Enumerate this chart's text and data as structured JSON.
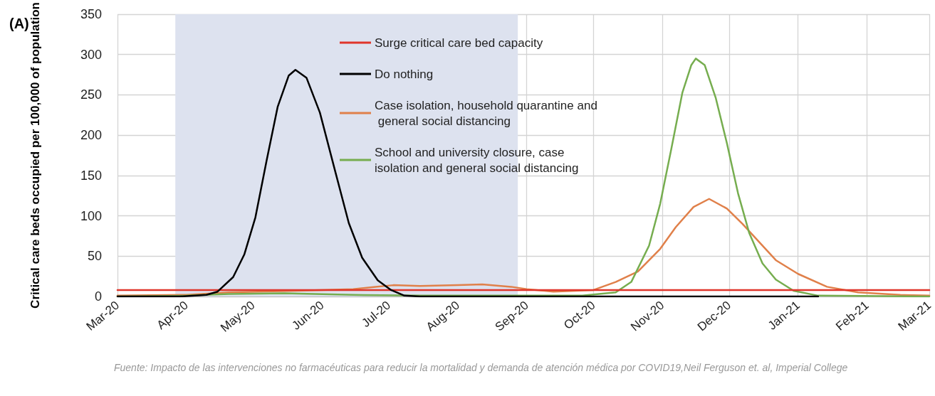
{
  "chart_data": {
    "type": "line",
    "title": "(A)",
    "ylabel": "Critical care beds occupied per 100,000 of population",
    "xlim": [
      "2020-03-01",
      "2021-03-01"
    ],
    "xticks": [
      {
        "value": "2020-03-01",
        "label": "Mar-20"
      },
      {
        "value": "2020-04-01",
        "label": "Apr-20"
      },
      {
        "value": "2020-05-01",
        "label": "May-20"
      },
      {
        "value": "2020-06-01",
        "label": "Jun-20"
      },
      {
        "value": "2020-07-01",
        "label": "Jul-20"
      },
      {
        "value": "2020-08-01",
        "label": "Aug-20"
      },
      {
        "value": "2020-09-01",
        "label": "Sep-20"
      },
      {
        "value": "2020-10-01",
        "label": "Oct-20"
      },
      {
        "value": "2020-11-01",
        "label": "Nov-20"
      },
      {
        "value": "2020-12-01",
        "label": "Dec-20"
      },
      {
        "value": "2021-01-01",
        "label": "Jan-21"
      },
      {
        "value": "2021-02-01",
        "label": "Feb-21"
      },
      {
        "value": "2021-03-01",
        "label": "Mar-21"
      }
    ],
    "ylim": [
      0,
      350
    ],
    "yticks": [
      0,
      50,
      100,
      150,
      200,
      250,
      300,
      350
    ],
    "grid": true,
    "legend": "top",
    "marker": "none",
    "line_style": "solid",
    "bands": [
      {
        "axis": "x",
        "from": "2020-03-27",
        "to": "2020-08-28",
        "color": "#dde2ef"
      }
    ],
    "series": [
      {
        "name": "Surge critical care bed capacity",
        "color": "#e0352b",
        "x": [
          "2020-03-01",
          "2021-03-01"
        ],
        "values": [
          8,
          8
        ]
      },
      {
        "name": "Do nothing",
        "color": "#000000",
        "x": [
          "2020-03-01",
          "2020-03-29",
          "2020-04-10",
          "2020-04-15",
          "2020-04-22",
          "2020-04-27",
          "2020-05-02",
          "2020-05-07",
          "2020-05-12",
          "2020-05-17",
          "2020-05-20",
          "2020-05-25",
          "2020-05-31",
          "2020-06-07",
          "2020-06-13",
          "2020-06-19",
          "2020-06-26",
          "2020-07-02",
          "2020-07-08",
          "2020-07-15",
          "2021-01-10"
        ],
        "values": [
          0,
          0,
          2,
          6,
          24,
          52,
          98,
          168,
          235,
          274,
          281,
          271,
          228,
          154,
          91,
          48,
          20,
          8,
          1,
          0,
          0
        ]
      },
      {
        "name": "Case isolation, household quarantine and general social distancing",
        "color": "#e0804a",
        "x": [
          "2020-03-01",
          "2020-04-01",
          "2020-04-20",
          "2020-05-20",
          "2020-06-15",
          "2020-06-25",
          "2020-07-03",
          "2020-07-15",
          "2020-08-01",
          "2020-08-12",
          "2020-08-25",
          "2020-09-01",
          "2020-09-13",
          "2020-10-01",
          "2020-10-11",
          "2020-10-21",
          "2020-10-31",
          "2020-11-07",
          "2020-11-15",
          "2020-11-22",
          "2020-11-30",
          "2020-12-07",
          "2020-12-15",
          "2020-12-22",
          "2021-01-01",
          "2021-01-14",
          "2021-01-28",
          "2021-02-16",
          "2021-03-01"
        ],
        "values": [
          1,
          2,
          5,
          7,
          9,
          12,
          14,
          13,
          14,
          15,
          12,
          9,
          6,
          8,
          18,
          31,
          59,
          86,
          111,
          121,
          109,
          90,
          66,
          45,
          28,
          12,
          5,
          2,
          1
        ]
      },
      {
        "name": "School and university closure, case isolation and general social distancing",
        "color": "#76ad4f",
        "x": [
          "2020-03-01",
          "2020-04-01",
          "2020-04-20",
          "2020-05-15",
          "2020-06-15",
          "2020-07-15",
          "2020-09-26",
          "2020-10-11",
          "2020-10-18",
          "2020-10-26",
          "2020-10-31",
          "2020-11-05",
          "2020-11-10",
          "2020-11-14",
          "2020-11-16",
          "2020-11-20",
          "2020-11-25",
          "2020-11-30",
          "2020-12-05",
          "2020-12-10",
          "2020-12-16",
          "2020-12-22",
          "2020-12-30",
          "2021-01-10",
          "2021-03-01"
        ],
        "values": [
          0,
          1,
          3,
          4,
          2,
          1,
          1,
          5,
          18,
          63,
          115,
          183,
          253,
          287,
          295,
          287,
          246,
          190,
          128,
          79,
          41,
          21,
          7,
          1,
          0
        ]
      }
    ],
    "annotations": [
      "Fuente: Impacto de las intervenciones no farmacéuticas para reducir la mortalidad y demanda de atención médica por COVID19,Neil Ferguson et. al, Imperial College"
    ]
  }
}
